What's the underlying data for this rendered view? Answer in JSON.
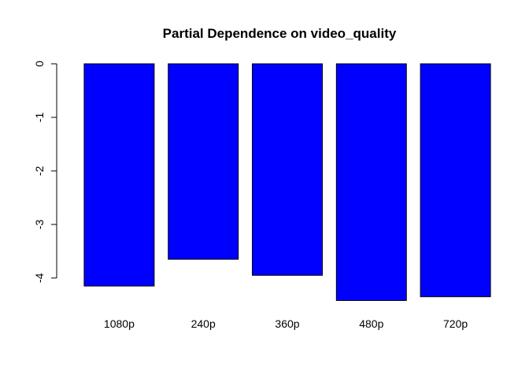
{
  "chart_data": {
    "type": "bar",
    "title": "Partial Dependence on video_quality",
    "xlabel": "",
    "ylabel": "",
    "categories": [
      "1080p",
      "240p",
      "360p",
      "480p",
      "720p"
    ],
    "values": [
      -4.15,
      -3.65,
      -3.95,
      -4.42,
      -4.35
    ],
    "yticks": [
      0,
      -1,
      -2,
      -3,
      -4
    ],
    "ylim": [
      -4.42,
      0
    ],
    "bar_color": "#0000ff",
    "grid": false,
    "legend": "none"
  }
}
